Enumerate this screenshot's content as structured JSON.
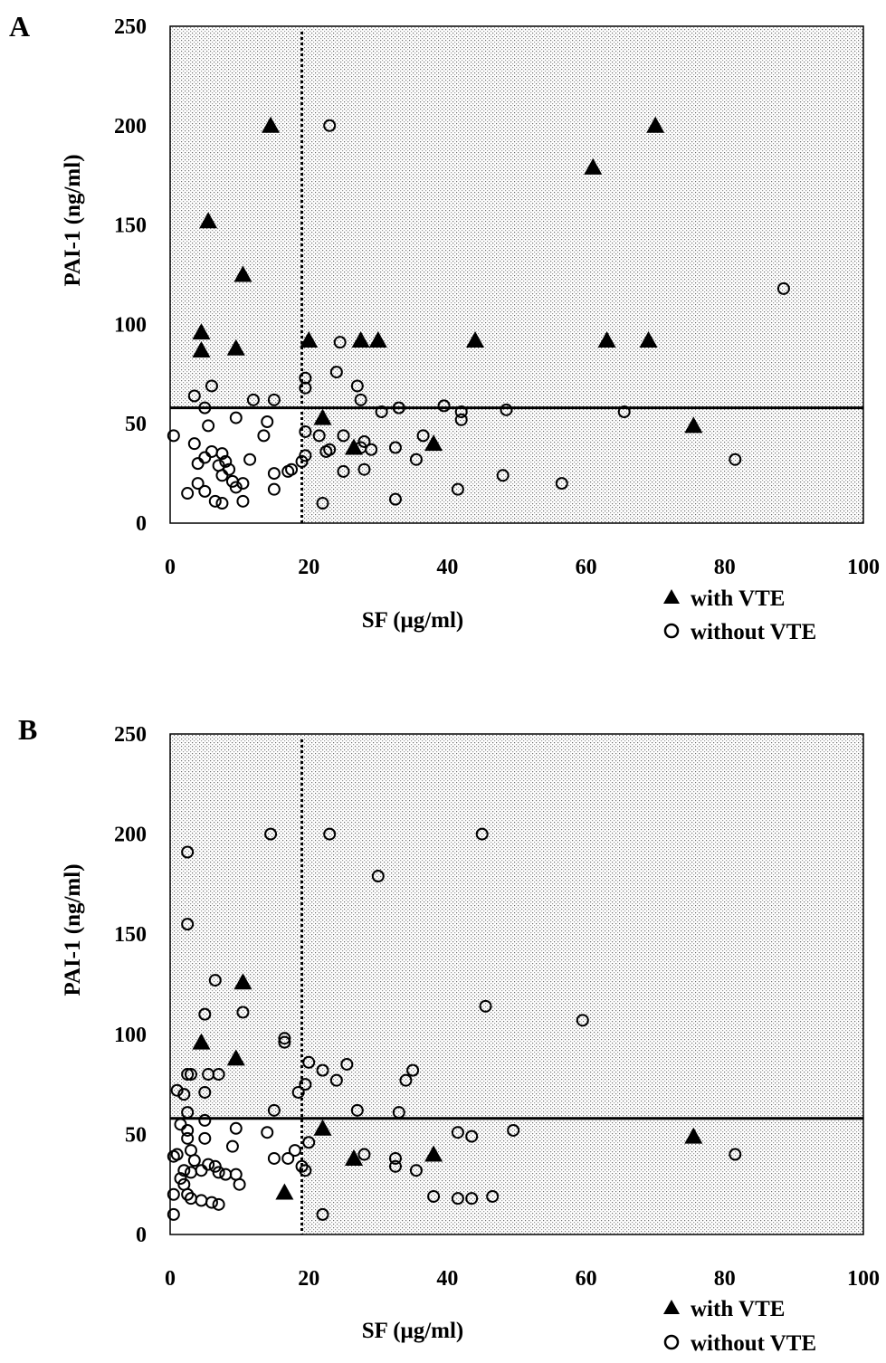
{
  "chart_data": [
    {
      "type": "scatter",
      "panel_label": "A",
      "xlabel": "SF (μg/ml)",
      "ylabel": "PAI-1 (ng/ml)",
      "xlim": [
        0,
        100
      ],
      "ylim": [
        0,
        250
      ],
      "xticks": [
        0,
        20,
        40,
        60,
        80,
        100
      ],
      "yticks": [
        0,
        50,
        100,
        150,
        200,
        250
      ],
      "cutoffs": {
        "vertical_x": 19,
        "horizontal_y": 58
      },
      "background": "dotted shading except lower-left quadrant",
      "legend": {
        "placement": "bottom-right",
        "entries": [
          "with VTE",
          "without VTE"
        ]
      },
      "series": [
        {
          "name": "with VTE",
          "marker": "filled-triangle",
          "points": [
            [
              14.5,
              200
            ],
            [
              70,
              200
            ],
            [
              61,
              179
            ],
            [
              5.5,
              152
            ],
            [
              10.5,
              125
            ],
            [
              4.5,
              96
            ],
            [
              4.5,
              87
            ],
            [
              9.5,
              88
            ],
            [
              20,
              92
            ],
            [
              27.5,
              92
            ],
            [
              30,
              92
            ],
            [
              44,
              92
            ],
            [
              63,
              92
            ],
            [
              69,
              92
            ],
            [
              22,
              53
            ],
            [
              38,
              40
            ],
            [
              26.5,
              38
            ],
            [
              75.5,
              49
            ]
          ]
        },
        {
          "name": "without VTE",
          "marker": "open-circle",
          "points": [
            [
              23,
              200
            ],
            [
              88.5,
              118
            ],
            [
              24.5,
              91
            ],
            [
              24,
              76
            ],
            [
              27,
              69
            ],
            [
              19.5,
              73
            ],
            [
              19.5,
              68
            ],
            [
              6,
              69
            ],
            [
              3.5,
              64
            ],
            [
              5,
              58
            ],
            [
              12,
              62
            ],
            [
              15,
              62
            ],
            [
              27.5,
              62
            ],
            [
              30.5,
              56
            ],
            [
              33,
              58
            ],
            [
              39.5,
              59
            ],
            [
              42,
              56
            ],
            [
              42,
              52
            ],
            [
              48.5,
              57
            ],
            [
              65.5,
              56
            ],
            [
              9.5,
              53
            ],
            [
              14,
              51
            ],
            [
              5.5,
              49
            ],
            [
              13.5,
              44
            ],
            [
              0.5,
              44
            ],
            [
              3.5,
              40
            ],
            [
              5,
              33
            ],
            [
              4,
              30
            ],
            [
              6,
              36
            ],
            [
              7.5,
              35
            ],
            [
              8,
              31
            ],
            [
              7,
              29
            ],
            [
              8.5,
              27
            ],
            [
              7.5,
              24
            ],
            [
              9,
              21
            ],
            [
              10.5,
              20
            ],
            [
              11.5,
              32
            ],
            [
              9.5,
              18
            ],
            [
              4,
              20
            ],
            [
              5,
              16
            ],
            [
              2.5,
              15
            ],
            [
              6.5,
              11
            ],
            [
              7.5,
              10
            ],
            [
              10.5,
              11
            ],
            [
              15,
              25
            ],
            [
              15,
              17
            ],
            [
              17,
              26
            ],
            [
              17.5,
              27
            ],
            [
              19.5,
              34
            ],
            [
              19,
              31
            ],
            [
              19.5,
              46
            ],
            [
              21.5,
              44
            ],
            [
              22.5,
              36
            ],
            [
              23,
              37
            ],
            [
              22,
              10
            ],
            [
              25,
              44
            ],
            [
              25,
              26
            ],
            [
              27.5,
              38
            ],
            [
              28,
              41
            ],
            [
              29,
              37
            ],
            [
              28,
              27
            ],
            [
              32.5,
              38
            ],
            [
              32.5,
              12
            ],
            [
              35.5,
              32
            ],
            [
              36.5,
              44
            ],
            [
              41.5,
              17
            ],
            [
              48,
              24
            ],
            [
              56.5,
              20
            ],
            [
              81.5,
              32
            ]
          ]
        }
      ]
    },
    {
      "type": "scatter",
      "panel_label": "B",
      "xlabel": "SF (μg/ml)",
      "ylabel": "PAI-1 (ng/ml)",
      "xlim": [
        0,
        100
      ],
      "ylim": [
        0,
        250
      ],
      "xticks": [
        0,
        20,
        40,
        60,
        80,
        100
      ],
      "yticks": [
        0,
        50,
        100,
        150,
        200,
        250
      ],
      "cutoffs": {
        "vertical_x": 19,
        "horizontal_y": 58
      },
      "background": "dotted shading except lower-left quadrant",
      "legend": {
        "placement": "bottom-right",
        "entries": [
          "with VTE",
          "without VTE"
        ]
      },
      "series": [
        {
          "name": "with VTE",
          "marker": "filled-triangle",
          "points": [
            [
              10.5,
              126
            ],
            [
              4.5,
              96
            ],
            [
              9.5,
              88
            ],
            [
              22,
              53
            ],
            [
              26.5,
              38
            ],
            [
              38,
              40
            ],
            [
              16.5,
              21
            ],
            [
              75.5,
              49
            ]
          ]
        },
        {
          "name": "without VTE",
          "marker": "open-circle",
          "points": [
            [
              2.5,
              191
            ],
            [
              2.5,
              155
            ],
            [
              14.5,
              200
            ],
            [
              23,
              200
            ],
            [
              45,
              200
            ],
            [
              30,
              179
            ],
            [
              6.5,
              127
            ],
            [
              5,
              110
            ],
            [
              10.5,
              111
            ],
            [
              45.5,
              114
            ],
            [
              59.5,
              107
            ],
            [
              16.5,
              98
            ],
            [
              16.5,
              96
            ],
            [
              20,
              86
            ],
            [
              22,
              82
            ],
            [
              24,
              77
            ],
            [
              25.5,
              85
            ],
            [
              35,
              82
            ],
            [
              34,
              77
            ],
            [
              19.5,
              75
            ],
            [
              18.5,
              71
            ],
            [
              2.5,
              80
            ],
            [
              3,
              80
            ],
            [
              5.5,
              80
            ],
            [
              7,
              80
            ],
            [
              1,
              72
            ],
            [
              2,
              70
            ],
            [
              5,
              71
            ],
            [
              2.5,
              61
            ],
            [
              15,
              62
            ],
            [
              27,
              62
            ],
            [
              33,
              61
            ],
            [
              1.5,
              55
            ],
            [
              2.5,
              52
            ],
            [
              5,
              57
            ],
            [
              9.5,
              53
            ],
            [
              14,
              51
            ],
            [
              2.5,
              48
            ],
            [
              5,
              48
            ],
            [
              9,
              44
            ],
            [
              3,
              42
            ],
            [
              1,
              40
            ],
            [
              0.5,
              39
            ],
            [
              3.5,
              37
            ],
            [
              5.5,
              35
            ],
            [
              6.5,
              34
            ],
            [
              2,
              32
            ],
            [
              3,
              31
            ],
            [
              4.5,
              32
            ],
            [
              7,
              31
            ],
            [
              8,
              30
            ],
            [
              9.5,
              30
            ],
            [
              10,
              25
            ],
            [
              1.5,
              28
            ],
            [
              2,
              25
            ],
            [
              2.5,
              20
            ],
            [
              3,
              18
            ],
            [
              4.5,
              17
            ],
            [
              6,
              16
            ],
            [
              7,
              15
            ],
            [
              0.5,
              20
            ],
            [
              0.5,
              10
            ],
            [
              15,
              38
            ],
            [
              17,
              38
            ],
            [
              18,
              42
            ],
            [
              19,
              34
            ],
            [
              19.5,
              32
            ],
            [
              20,
              46
            ],
            [
              28,
              40
            ],
            [
              32.5,
              38
            ],
            [
              32.5,
              34
            ],
            [
              35.5,
              32
            ],
            [
              41.5,
              51
            ],
            [
              43.5,
              49
            ],
            [
              49.5,
              52
            ],
            [
              81.5,
              40
            ],
            [
              22,
              10
            ],
            [
              38,
              19
            ],
            [
              41.5,
              18
            ],
            [
              43.5,
              18
            ],
            [
              46.5,
              19
            ]
          ]
        }
      ]
    }
  ]
}
